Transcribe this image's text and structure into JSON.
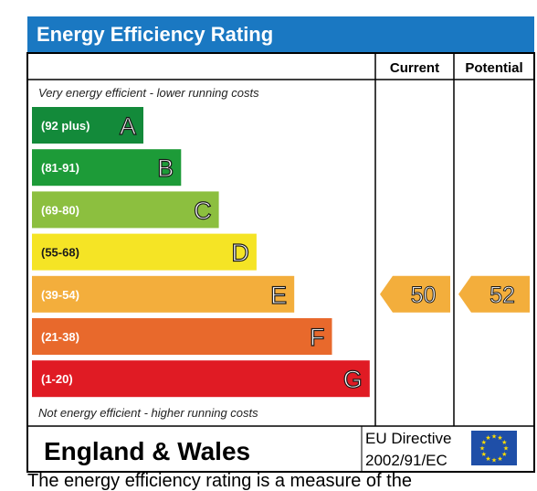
{
  "title": "Energy Efficiency Rating",
  "columns": {
    "current": "Current",
    "potential": "Potential"
  },
  "top_note": "Very energy efficient - lower running costs",
  "bottom_note": "Not energy efficient - higher running costs",
  "region": "England & Wales",
  "directive_line1": "EU Directive",
  "directive_line2": "2002/91/EC",
  "footer_partial": "The energy efficiency rating is a measure of the",
  "colors": {
    "header": "#1a78c2",
    "A": "#138a3a",
    "B": "#1d9b38",
    "C": "#8cbf3f",
    "D": "#f5e425",
    "E": "#f3ae3c",
    "F": "#e8692c",
    "G": "#e01b24",
    "indicator": "#f3ae3c",
    "eu_flag": "#1f4fa8",
    "eu_stars": "#ffdd00"
  },
  "chart_data": {
    "type": "table",
    "title": "Energy Efficiency Rating",
    "bands": [
      {
        "letter": "A",
        "range": "(92 plus)",
        "min": 92,
        "max": null
      },
      {
        "letter": "B",
        "range": "(81-91)",
        "min": 81,
        "max": 91
      },
      {
        "letter": "C",
        "range": "(69-80)",
        "min": 69,
        "max": 80
      },
      {
        "letter": "D",
        "range": "(55-68)",
        "min": 55,
        "max": 68
      },
      {
        "letter": "E",
        "range": "(39-54)",
        "min": 39,
        "max": 54
      },
      {
        "letter": "F",
        "range": "(21-38)",
        "min": 21,
        "max": 38
      },
      {
        "letter": "G",
        "range": "(1-20)",
        "min": 1,
        "max": 20
      }
    ],
    "current": {
      "value": 50,
      "band": "E"
    },
    "potential": {
      "value": 52,
      "band": "E"
    }
  }
}
